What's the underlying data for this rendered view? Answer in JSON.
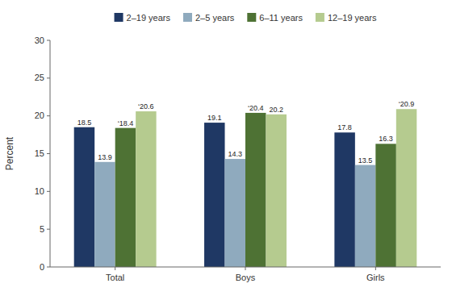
{
  "chart_data": {
    "type": "bar",
    "y_label": "Percent",
    "categories": [
      "Total",
      "Boys",
      "Girls"
    ],
    "series": [
      {
        "name": "2–19 years",
        "color": "#1f3864",
        "values": [
          18.5,
          19.1,
          17.8
        ],
        "value_labels": [
          "18.5",
          "19.1",
          "17.8"
        ]
      },
      {
        "name": "2–5 years",
        "color": "#8faabe",
        "values": [
          13.9,
          14.3,
          13.5
        ],
        "value_labels": [
          "13.9",
          "14.3",
          "13.5"
        ]
      },
      {
        "name": "6–11 years",
        "color": "#4e7234",
        "values": [
          18.4,
          20.4,
          16.3
        ],
        "value_labels": [
          "‘18.4",
          "‘20.4",
          "16.3"
        ]
      },
      {
        "name": "12–19 years",
        "color": "#b5cb8f",
        "values": [
          20.6,
          20.2,
          20.9
        ],
        "value_labels": [
          "‘20.6",
          "20.2",
          "‘20.9"
        ]
      }
    ],
    "ylim": [
      0,
      30
    ],
    "yticks": [
      0,
      5,
      10,
      15,
      20,
      25,
      30
    ],
    "grid": false,
    "legend": "top",
    "data_labels": true
  }
}
